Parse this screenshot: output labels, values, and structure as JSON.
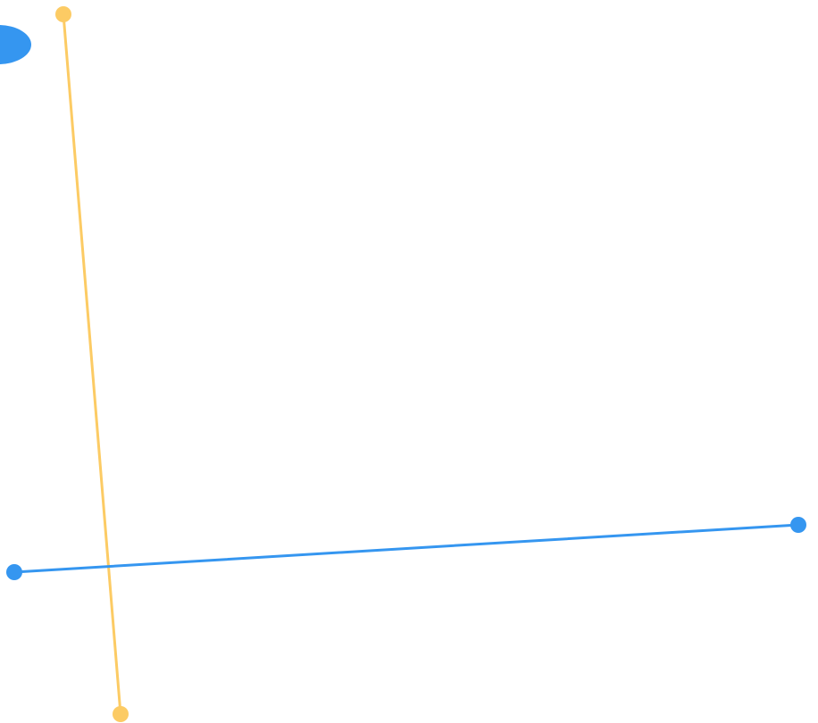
{
  "colors": {
    "background": "#ffffff",
    "blue": "#3596f0",
    "yellow": "#fccb64",
    "blob": "#3596f0"
  },
  "elements": {
    "blob": {
      "shape": "ellipse",
      "color_key": "blob"
    },
    "yellow_line": {
      "kind": "connector",
      "color_key": "yellow",
      "endpoints": [
        "handle",
        "handle"
      ]
    },
    "blue_line": {
      "kind": "connector",
      "color_key": "blue",
      "endpoints": [
        "handle",
        "handle"
      ]
    }
  }
}
